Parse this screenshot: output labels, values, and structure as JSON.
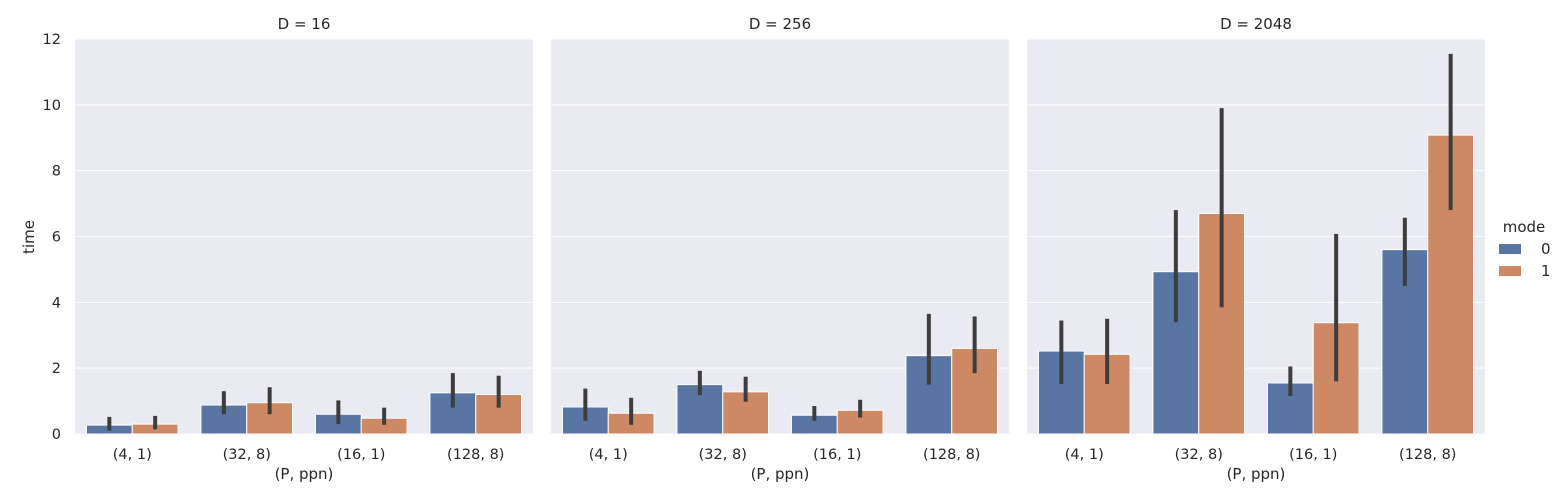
{
  "chart_data": {
    "type": "bar",
    "facet_label_prefix": "D = ",
    "facets": [
      {
        "title": "D = 16",
        "categories": [
          "(4, 1)",
          "(32, 8)",
          "(16, 1)",
          "(128, 8)"
        ],
        "series": [
          {
            "name": "0",
            "values": [
              0.27,
              0.88,
              0.6,
              1.25
            ],
            "ci": [
              [
                0.1,
                0.52
              ],
              [
                0.6,
                1.3
              ],
              [
                0.3,
                1.02
              ],
              [
                0.8,
                1.85
              ]
            ]
          },
          {
            "name": "1",
            "values": [
              0.3,
              0.95,
              0.48,
              1.2
            ],
            "ci": [
              [
                0.14,
                0.55
              ],
              [
                0.6,
                1.42
              ],
              [
                0.28,
                0.8
              ],
              [
                0.8,
                1.77
              ]
            ]
          }
        ]
      },
      {
        "title": "D = 256",
        "categories": [
          "(4, 1)",
          "(32, 8)",
          "(16, 1)",
          "(128, 8)"
        ],
        "series": [
          {
            "name": "0",
            "values": [
              0.82,
              1.5,
              0.57,
              2.38
            ],
            "ci": [
              [
                0.4,
                1.38
              ],
              [
                1.18,
                1.92
              ],
              [
                0.4,
                0.85
              ],
              [
                1.5,
                3.65
              ]
            ]
          },
          {
            "name": "1",
            "values": [
              0.63,
              1.28,
              0.72,
              2.6
            ],
            "ci": [
              [
                0.28,
                1.1
              ],
              [
                0.98,
                1.74
              ],
              [
                0.5,
                1.04
              ],
              [
                1.85,
                3.57
              ]
            ]
          }
        ]
      },
      {
        "title": "D = 2048",
        "categories": [
          "(4, 1)",
          "(32, 8)",
          "(16, 1)",
          "(128, 8)"
        ],
        "series": [
          {
            "name": "0",
            "values": [
              2.52,
              4.93,
              1.55,
              5.6
            ],
            "ci": [
              [
                1.52,
                3.45
              ],
              [
                3.4,
                6.8
              ],
              [
                1.15,
                2.05
              ],
              [
                4.5,
                6.57
              ]
            ]
          },
          {
            "name": "1",
            "values": [
              2.42,
              6.7,
              3.38,
              9.08
            ],
            "ci": [
              [
                1.52,
                3.5
              ],
              [
                3.85,
                9.9
              ],
              [
                1.6,
                6.08
              ],
              [
                6.8,
                11.55
              ]
            ]
          }
        ]
      }
    ],
    "xlabel": "(P, ppn)",
    "ylabel": "time",
    "ylim": [
      0,
      12
    ],
    "yticks": [
      0,
      2,
      4,
      6,
      8,
      10,
      12
    ],
    "grid": true,
    "legend": {
      "title": "mode",
      "placement": "right",
      "entries": [
        "0",
        "1"
      ]
    },
    "colors": {
      "0": "#5875a4",
      "1": "#cc8963",
      "error_bar": "#3d3d3d",
      "panel_bg": "#eaeaf2"
    }
  }
}
